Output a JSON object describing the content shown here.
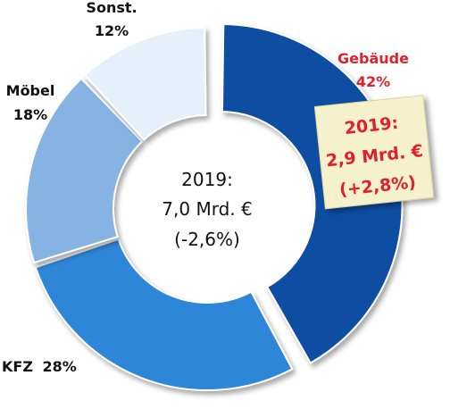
{
  "chart_data": {
    "type": "pie",
    "variant": "donut",
    "slices": [
      {
        "label": "Gebäude",
        "value": 42,
        "value_text": "42%",
        "color": "#0a4ea2",
        "label_color": "#e0202a",
        "exploded": true
      },
      {
        "label": "KFZ",
        "value": 28,
        "value_text": "28%",
        "color": "#2f86d8",
        "label_color": "#111111",
        "exploded": false
      },
      {
        "label": "Möbel",
        "value": 18,
        "value_text": "18%",
        "color": "#86b3e2",
        "label_color": "#111111",
        "exploded": false
      },
      {
        "label": "Sonst.",
        "value": 12,
        "value_text": "12%",
        "color": "#e6f0fb",
        "label_color": "#111111",
        "exploded": false
      }
    ],
    "center_text": [
      "2019:",
      "7,0 Mrd. €",
      "(-2,6%)"
    ],
    "callout": {
      "lines": [
        "2019:",
        "2,9 Mrd. €",
        "(+2,8%)"
      ],
      "text_color": "#e0202a",
      "background": "#f4f1cc"
    }
  }
}
